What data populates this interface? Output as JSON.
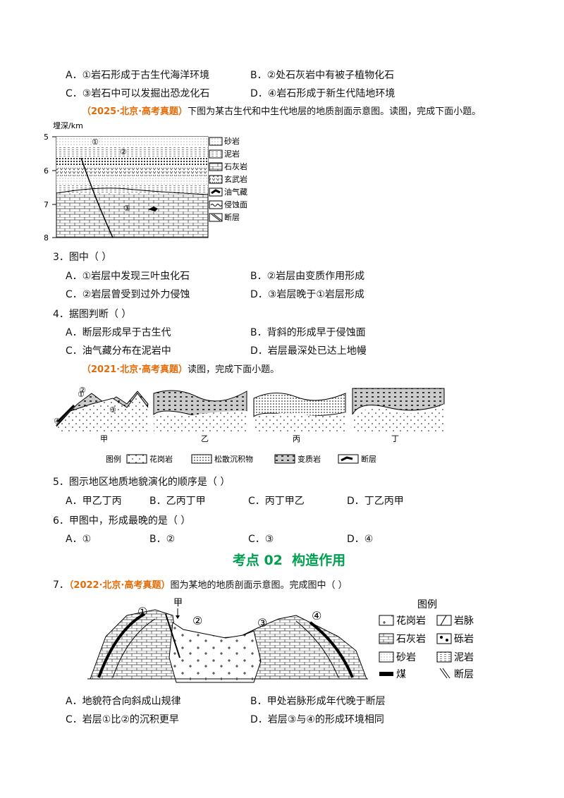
{
  "prev_options": [
    "A．①岩石形成于古生代海洋环境",
    "B．②处石灰岩中有被子植物化石",
    "C．③岩石中可以发掘出恐龙化石",
    "D．④岩石形成于新生代陆地环境"
  ],
  "group1": {
    "source": "（2025·北京·高考真题）",
    "intro": "下图为某古生代和中生代地层的地质剖面示意图。读图，完成下面小题。"
  },
  "figure1": {
    "y_label": "埋深/km",
    "depth_labels": [
      "5",
      "6",
      "7",
      "8"
    ],
    "layer_labels": [
      "①",
      "②",
      "③"
    ],
    "legend": [
      "砂岩",
      "泥岩",
      "石灰岩",
      "玄武岩",
      "油气藏",
      "侵蚀面",
      "断层"
    ]
  },
  "q3": {
    "stem": "3．图中（  ）",
    "options": [
      "A．①岩层中发现三叶虫化石",
      "B．②岩层由变质作用形成",
      "C．②岩层曾受到过外力侵蚀",
      "D．③岩层晚于①岩层形成"
    ]
  },
  "q4": {
    "stem": "4．据图判断（  ）",
    "options": [
      "A．断层形成早于古生代",
      "B．背斜的形成早于侵蚀面",
      "C．油气藏分布在泥岩中",
      "D．岩层最深处已达上地幔"
    ]
  },
  "group2": {
    "source": "（2021·北京·高考真题）",
    "intro": "读图，完成下面小题。"
  },
  "figure2": {
    "marks": [
      "①",
      "②",
      "③",
      "④"
    ],
    "panels": [
      "甲",
      "乙",
      "丙",
      "丁"
    ],
    "legend_title": "图例",
    "legend": [
      "花岗岩",
      "松散沉积物",
      "变质岩",
      "断层"
    ]
  },
  "q5": {
    "stem": "5．图示地区地质地貌演化的顺序是（  ）",
    "options": [
      "A．甲乙丁丙",
      "B．乙丙丁甲",
      "C．丙丁甲乙",
      "D．丁乙丙甲"
    ]
  },
  "q6": {
    "stem": "6．甲图中，形成最晚的是（  ）",
    "options": [
      "A．①",
      "B．②",
      "C．③",
      "D．④"
    ]
  },
  "section": "考点 02  构造作用",
  "q7": {
    "number": "7．",
    "source": "（2022·北京·高考真题）",
    "stem": "图为某地的地质剖面示意图。完成图中（  ）",
    "options": [
      "A．地貌符合向斜成山规律",
      "B．甲处岩脉形成年代晚于断层",
      "C．岩层①比②的沉积更早",
      "D．岩层③与④的形成环境相同"
    ]
  },
  "figure3": {
    "marks": [
      "①",
      "甲",
      "②",
      "③",
      "④"
    ],
    "legend_title": "图例",
    "legend": [
      "花岗岩",
      "岩脉",
      "石灰岩",
      "砾岩",
      "砂岩",
      "泥岩",
      "煤",
      "断层"
    ]
  }
}
